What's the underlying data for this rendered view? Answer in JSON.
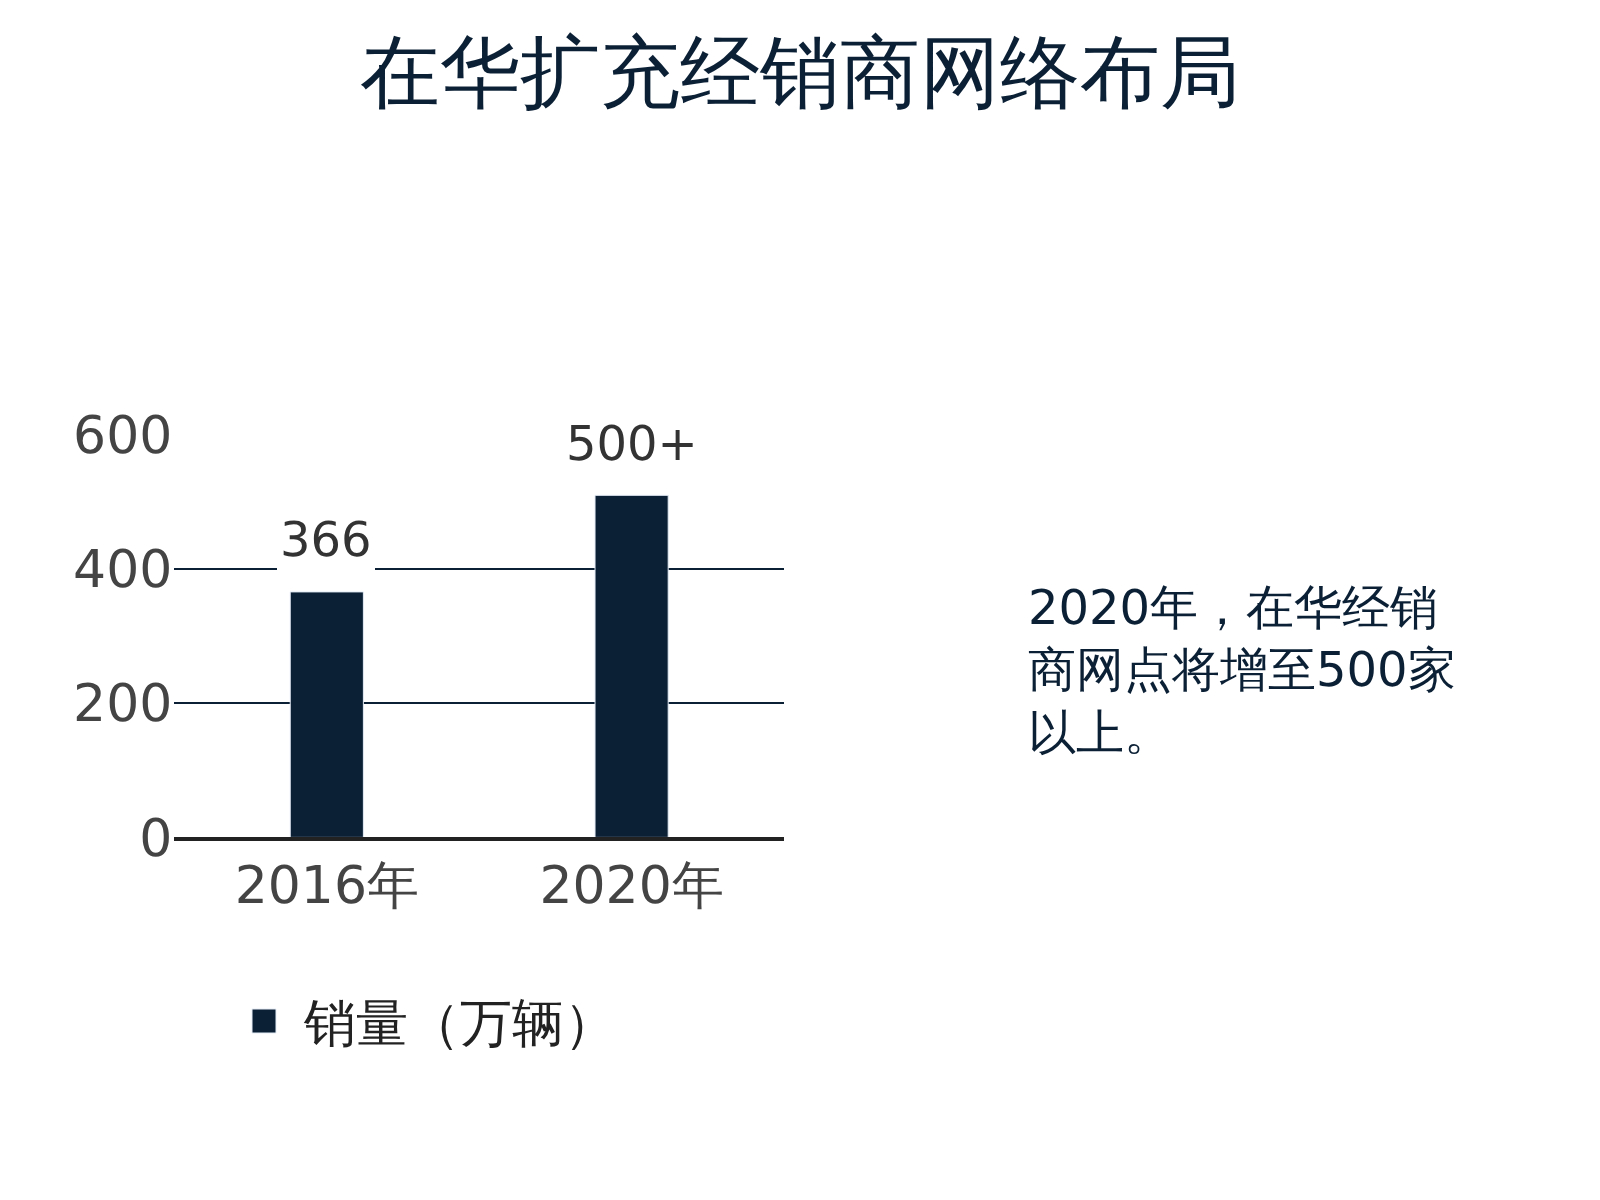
{
  "chart_data": {
    "type": "bar",
    "title": "在华扩充经销商网络布局",
    "categories": [
      "2016年",
      "2020年"
    ],
    "series": [
      {
        "name": "销量（万辆）",
        "color": "#0b2035",
        "values": [
          366,
          510
        ],
        "value_labels": [
          "366",
          "500+"
        ]
      }
    ],
    "ylim": [
      0,
      600
    ],
    "yticks": [
      0,
      200,
      400,
      600
    ],
    "grid": "y",
    "legend": "bottom",
    "annotations": [
      "2020年，在华经销商网点将增至500家以上。"
    ]
  }
}
